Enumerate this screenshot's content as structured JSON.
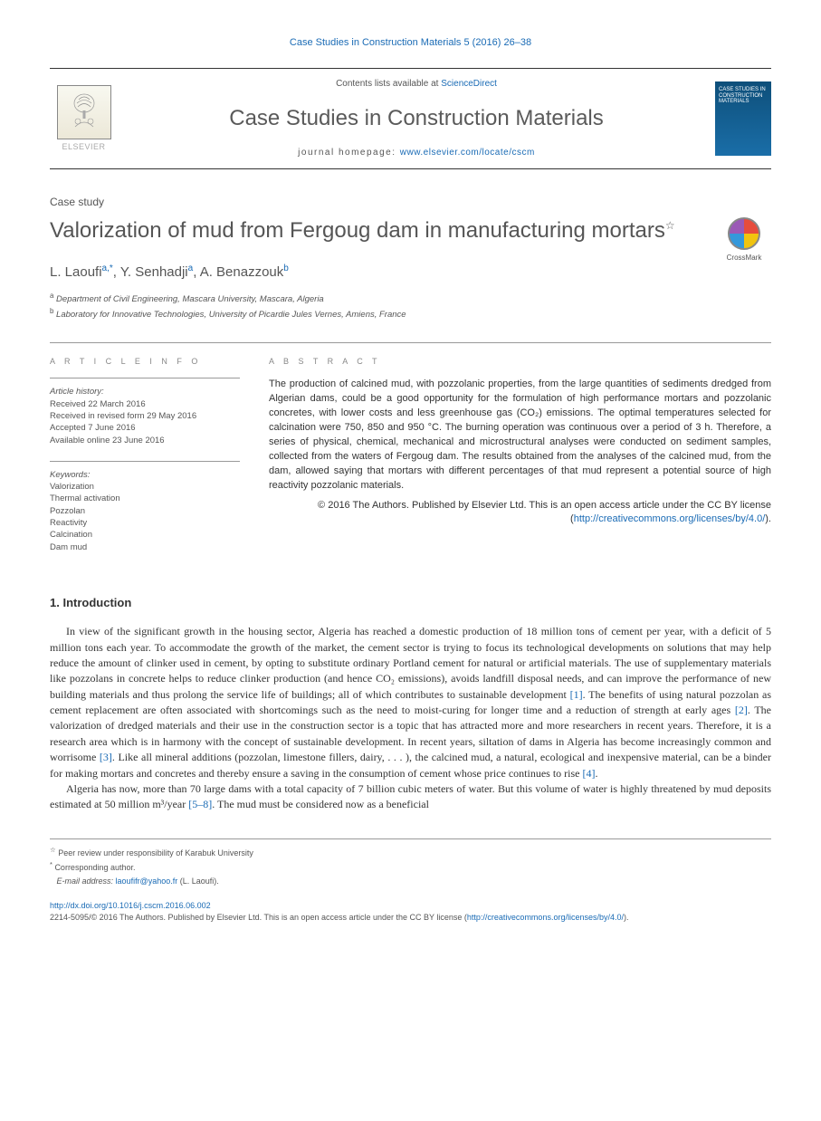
{
  "citation": "Case Studies in Construction Materials 5 (2016) 26–38",
  "header": {
    "contents_prefix": "Contents lists available at ",
    "contents_link": "ScienceDirect",
    "journal_name": "Case Studies in Construction Materials",
    "homepage_prefix": "journal homepage: ",
    "homepage_url": "www.elsevier.com/locate/cscm",
    "elsevier_label": "ELSEVIER",
    "cover_text": "CASE STUDIES IN CONSTRUCTION MATERIALS"
  },
  "article_type": "Case study",
  "title": "Valorization of mud from Fergoug dam in manufacturing mortars",
  "crossmark_label": "CrossMark",
  "authors_html": "L. Laoufi<sup>a,*</sup>, Y. Senhadji<sup>a</sup>, A. Benazzouk<sup>b</sup>",
  "affiliations": {
    "a": "Department of Civil Engineering, Mascara University, Mascara, Algeria",
    "b": "Laboratory for Innovative Technologies, University of Picardie Jules Vernes, Amiens, France"
  },
  "info": {
    "heading": "A R T I C L E   I N F O",
    "history_label": "Article history:",
    "received": "Received 22 March 2016",
    "revised": "Received in revised form 29 May 2016",
    "accepted": "Accepted 7 June 2016",
    "available": "Available online 23 June 2016",
    "keywords_label": "Keywords:",
    "keywords": [
      "Valorization",
      "Thermal activation",
      "Pozzolan",
      "Reactivity",
      "Calcination",
      "Dam mud"
    ]
  },
  "abstract": {
    "heading": "A B S T R A C T",
    "text": "The production of calcined mud, with pozzolanic properties, from the large quantities of sediments dredged from Algerian dams, could be a good opportunity for the formulation of high performance mortars and pozzolanic concretes, with lower costs and less greenhouse gas (CO₂) emissions. The optimal temperatures selected for calcination were 750, 850 and 950 °C. The burning operation was continuous over a period of 3 h. Therefore, a series of physical, chemical, mechanical and microstructural analyses were conducted on sediment samples, collected from the waters of Fergoug dam. The results obtained from the analyses of the calcined mud, from the dam, allowed saying that mortars with different percentages of that mud represent a potential source of high reactivity pozzolanic materials.",
    "copyright": "© 2016 The Authors. Published by Elsevier Ltd. This is an open access article under the CC BY license (",
    "cc_url": "http://creativecommons.org/licenses/by/4.0/",
    "cc_close": ")."
  },
  "intro": {
    "heading": "1. Introduction",
    "p1_a": "In view of the significant growth in the housing sector, Algeria has reached a domestic production of 18 million tons of cement per year, with a deficit of 5 million tons each year. To accommodate the growth of the market, the cement sector is trying to focus its technological developments on solutions that may help reduce the amount of clinker used in cement, by opting to substitute ordinary Portland cement for natural or artificial materials. The use of supplementary materials like pozzolans in concrete helps to reduce clinker production (and hence CO₂ emissions), avoids landfill disposal needs, and can improve the performance of new building materials and thus prolong the service life of buildings; all of which contributes to sustainable development ",
    "r1": "[1]",
    "p1_b": ". The benefits of using natural pozzolan as cement replacement are often associated with shortcomings such as the need to moist-curing for longer time and a reduction of strength at early ages ",
    "r2": "[2]",
    "p1_c": ". The valorization of dredged materials and their use in the construction sector is a topic that has attracted more and more researchers in recent years. Therefore, it is a research area which is in harmony with the concept of sustainable development. In recent years, siltation of dams in Algeria has become increasingly common and worrisome ",
    "r3": "[3]",
    "p1_d": ". Like all mineral additions (pozzolan, limestone fillers, dairy, . . . ), the calcined mud, a natural, ecological and inexpensive material, can be a binder for making mortars and concretes and thereby ensure a saving in the consumption of cement whose price continues to rise ",
    "r4": "[4]",
    "p1_e": ".",
    "p2_a": "Algeria has now, more than 70 large dams with a total capacity of 7 billion cubic meters of water. But this volume of water is highly threatened by mud deposits estimated at 50 million m³/year ",
    "r5": "[5–8]",
    "p2_b": ". The mud must be considered now as a beneficial"
  },
  "footnotes": {
    "peer": "Peer review under responsibility of Karabuk University",
    "corr": "Corresponding author.",
    "email_label": "E-mail address: ",
    "email": "laoufifr@yahoo.fr",
    "email_name": " (L.  Laoufi)."
  },
  "bottom": {
    "doi": "http://dx.doi.org/10.1016/j.cscm.2016.06.002",
    "issn_line_a": "2214-5095/© 2016 The Authors. Published by Elsevier Ltd. This is an open access article under the CC BY license (",
    "cc_url": "http://creativecommons.org/licenses/by/4.0/",
    "issn_line_b": ")."
  },
  "colors": {
    "link": "#1a6bb5",
    "text": "#333333",
    "muted": "#555555",
    "heading_gray": "#888888"
  }
}
